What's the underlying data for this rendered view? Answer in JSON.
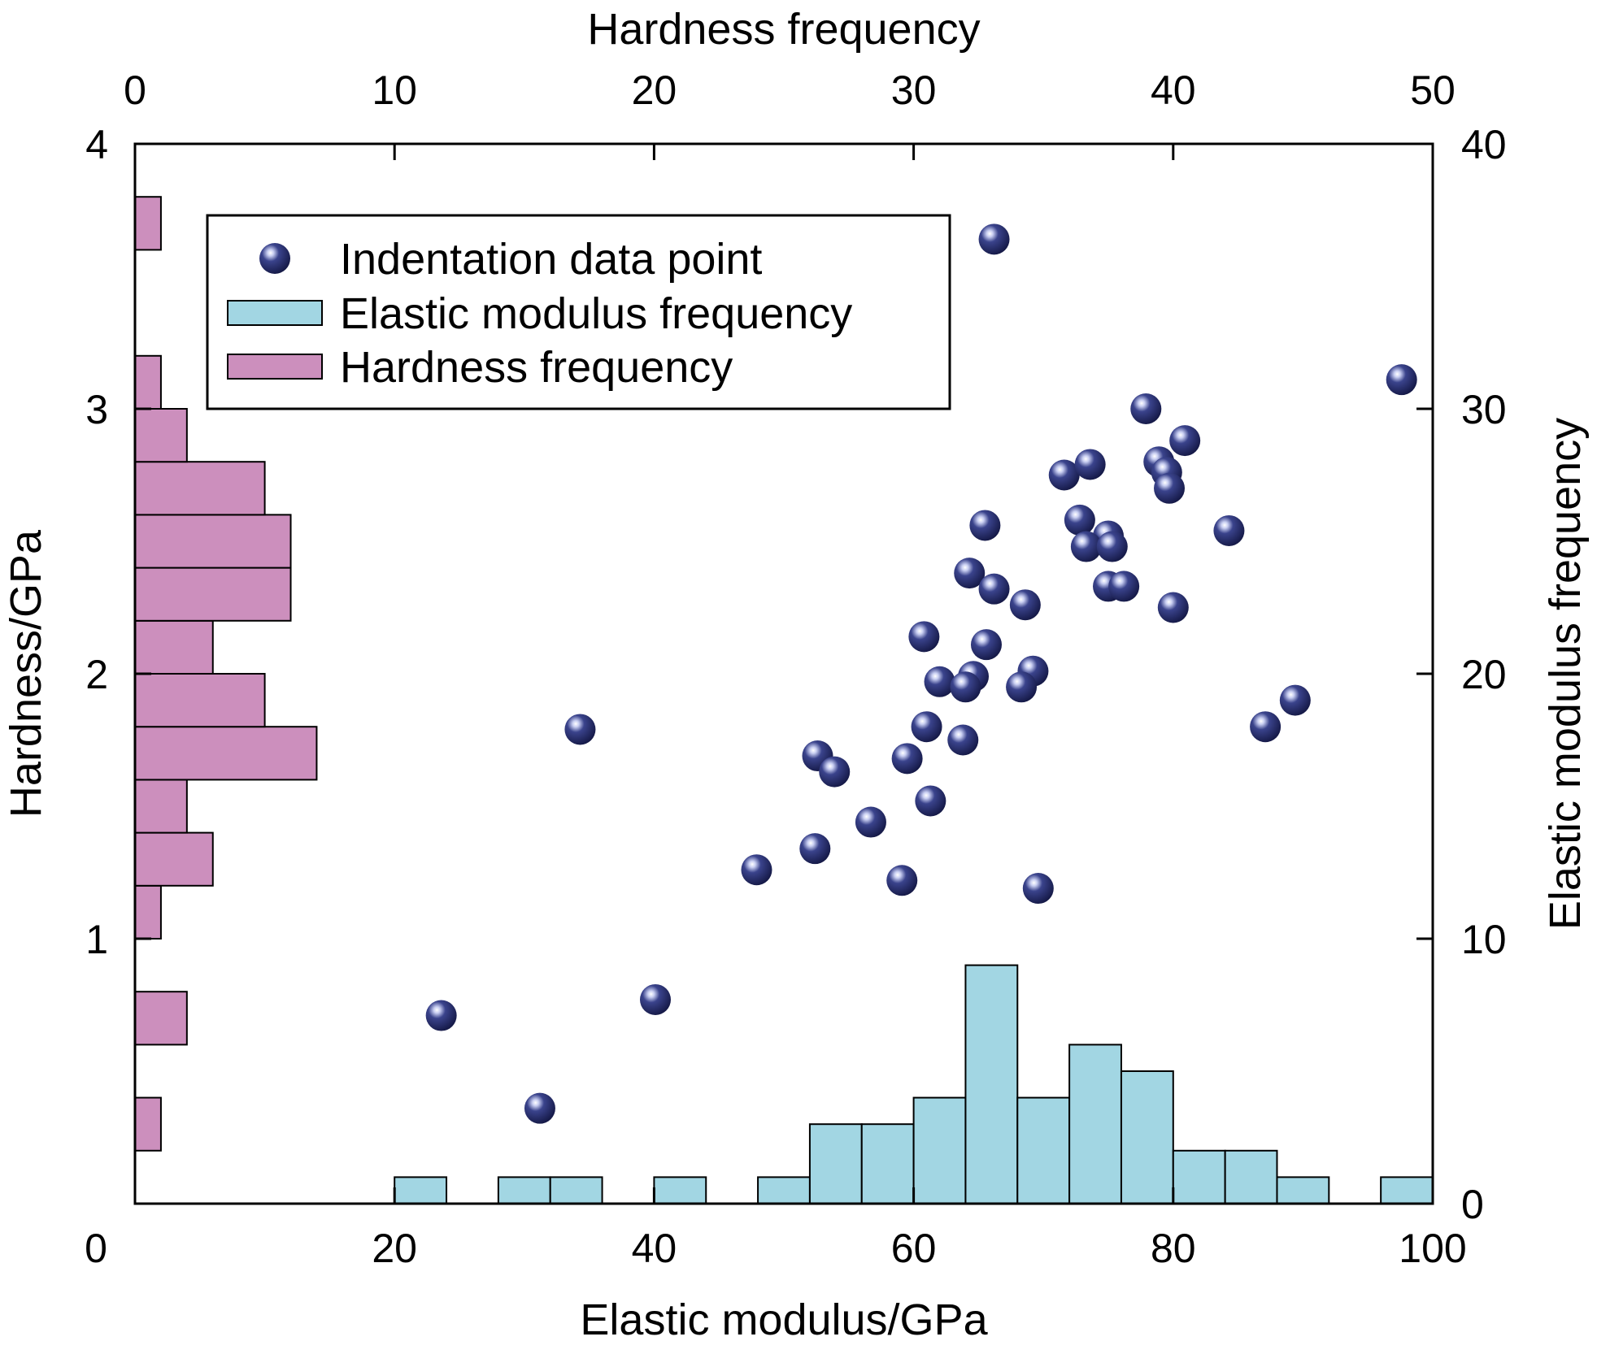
{
  "chart_data": {
    "type": "scatter",
    "x_axis": {
      "label": "Elastic modulus/GPa",
      "range": [
        0,
        100
      ],
      "ticks": [
        "0",
        "20",
        "40",
        "60",
        "80",
        "100"
      ]
    },
    "y_axis": {
      "label": "Hardness/GPa",
      "range": [
        0,
        4
      ],
      "ticks": [
        "1",
        "2",
        "3",
        "4"
      ]
    },
    "top_axis": {
      "label": "Hardness frequency",
      "range": [
        0,
        50
      ],
      "ticks": [
        "0",
        "10",
        "20",
        "30",
        "40",
        "50"
      ]
    },
    "right_axis": {
      "label": "Elastic modulus frequency",
      "range": [
        0,
        40
      ],
      "ticks": [
        "0",
        "10",
        "20",
        "30",
        "40"
      ]
    },
    "legend": {
      "placement": "top-left",
      "entries": [
        {
          "label": "Indentation data point",
          "kind": "marker",
          "color": "#1e2356"
        },
        {
          "label": "Elastic modulus frequency",
          "kind": "bar",
          "color": "#a2d6e3"
        },
        {
          "label": "Hardness frequency",
          "kind": "bar",
          "color": "#cc8fbd"
        }
      ]
    },
    "series": [
      {
        "name": "Indentation data point",
        "type": "scatter",
        "color": "#1e2356",
        "points": [
          [
            66.2,
            3.64
          ],
          [
            97.6,
            3.11
          ],
          [
            77.9,
            3.0
          ],
          [
            80.9,
            2.88
          ],
          [
            71.6,
            2.75
          ],
          [
            73.6,
            2.79
          ],
          [
            78.9,
            2.8
          ],
          [
            79.5,
            2.76
          ],
          [
            79.7,
            2.7
          ],
          [
            72.8,
            2.58
          ],
          [
            65.5,
            2.56
          ],
          [
            84.3,
            2.54
          ],
          [
            75.0,
            2.52
          ],
          [
            73.3,
            2.48
          ],
          [
            75.3,
            2.48
          ],
          [
            64.3,
            2.38
          ],
          [
            66.2,
            2.32
          ],
          [
            75.0,
            2.33
          ],
          [
            76.2,
            2.33
          ],
          [
            68.6,
            2.26
          ],
          [
            80.0,
            2.25
          ],
          [
            60.8,
            2.14
          ],
          [
            65.6,
            2.11
          ],
          [
            69.2,
            2.01
          ],
          [
            64.6,
            1.99
          ],
          [
            62.0,
            1.97
          ],
          [
            64.0,
            1.95
          ],
          [
            68.3,
            1.95
          ],
          [
            89.4,
            1.9
          ],
          [
            34.3,
            1.79
          ],
          [
            61.0,
            1.8
          ],
          [
            87.1,
            1.8
          ],
          [
            63.8,
            1.75
          ],
          [
            52.6,
            1.69
          ],
          [
            59.5,
            1.68
          ],
          [
            53.9,
            1.63
          ],
          [
            61.3,
            1.52
          ],
          [
            56.7,
            1.44
          ],
          [
            52.4,
            1.34
          ],
          [
            47.9,
            1.26
          ],
          [
            59.1,
            1.22
          ],
          [
            69.6,
            1.19
          ],
          [
            40.1,
            0.77
          ],
          [
            23.6,
            0.71
          ],
          [
            31.2,
            0.36
          ]
        ]
      },
      {
        "name": "Elastic modulus frequency",
        "type": "bar",
        "color": "#a2d6e3",
        "bin_width": 4,
        "bins": [
          {
            "start": 20,
            "count": 1
          },
          {
            "start": 28,
            "count": 1
          },
          {
            "start": 32,
            "count": 1
          },
          {
            "start": 40,
            "count": 1
          },
          {
            "start": 48,
            "count": 1
          },
          {
            "start": 52,
            "count": 3
          },
          {
            "start": 56,
            "count": 3
          },
          {
            "start": 60,
            "count": 4
          },
          {
            "start": 64,
            "count": 9
          },
          {
            "start": 68,
            "count": 4
          },
          {
            "start": 72,
            "count": 6
          },
          {
            "start": 76,
            "count": 5
          },
          {
            "start": 80,
            "count": 2
          },
          {
            "start": 84,
            "count": 2
          },
          {
            "start": 88,
            "count": 1
          },
          {
            "start": 96,
            "count": 1
          }
        ]
      },
      {
        "name": "Hardness frequency",
        "type": "bar-horizontal",
        "color": "#cc8fbd",
        "bin_width": 0.2,
        "bins": [
          {
            "start": 0.2,
            "count": 1
          },
          {
            "start": 0.6,
            "count": 2
          },
          {
            "start": 1.0,
            "count": 1
          },
          {
            "start": 1.2,
            "count": 3
          },
          {
            "start": 1.4,
            "count": 2
          },
          {
            "start": 1.6,
            "count": 7
          },
          {
            "start": 1.8,
            "count": 5
          },
          {
            "start": 2.0,
            "count": 3
          },
          {
            "start": 2.2,
            "count": 6
          },
          {
            "start": 2.4,
            "count": 6
          },
          {
            "start": 2.6,
            "count": 5
          },
          {
            "start": 2.8,
            "count": 2
          },
          {
            "start": 3.0,
            "count": 1
          },
          {
            "start": 3.6,
            "count": 1
          }
        ]
      }
    ]
  }
}
